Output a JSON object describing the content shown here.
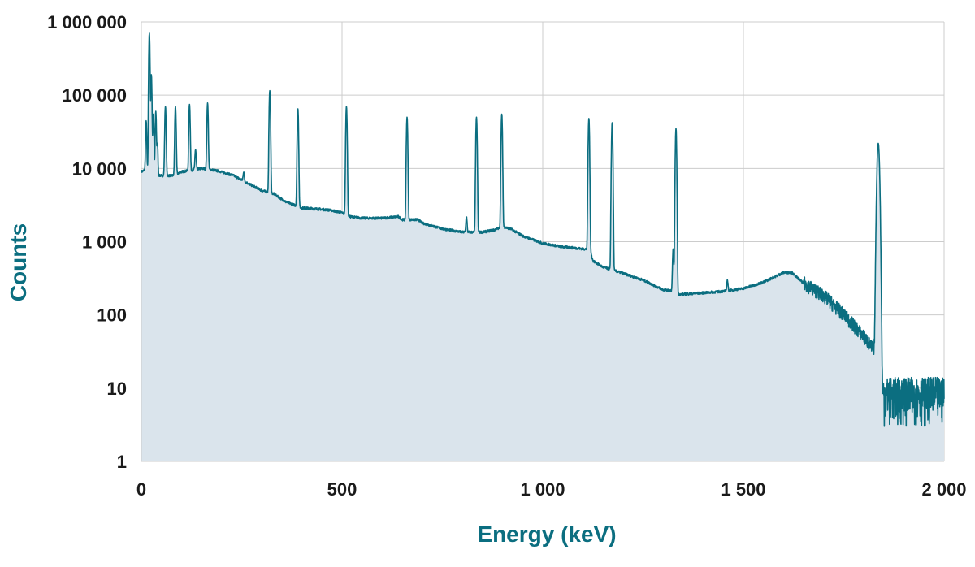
{
  "chart_data": {
    "type": "area",
    "title": "",
    "xlabel": "Energy (keV)",
    "ylabel": "Counts",
    "xlim": [
      0,
      2000
    ],
    "ylim": [
      1,
      1000000
    ],
    "y_scale": "log",
    "grid": true,
    "x_ticks": [
      {
        "value": 0,
        "label": "0"
      },
      {
        "value": 500,
        "label": "500"
      },
      {
        "value": 1000,
        "label": "1 000"
      },
      {
        "value": 1500,
        "label": "1 500"
      },
      {
        "value": 2000,
        "label": "2 000"
      }
    ],
    "y_ticks": [
      {
        "value": 1,
        "label": "1"
      },
      {
        "value": 10,
        "label": "10"
      },
      {
        "value": 100,
        "label": "100"
      },
      {
        "value": 1000,
        "label": "1 000"
      },
      {
        "value": 10000,
        "label": "10 000"
      },
      {
        "value": 100000,
        "label": "100 000"
      },
      {
        "value": 1000000,
        "label": "1 000 000"
      }
    ],
    "colors": {
      "line": "#0b6e80",
      "fill": "#dae4ec",
      "grid": "#cccccc",
      "axis_title": "#0b6e80",
      "tick_label": "#1a1a1a"
    },
    "series": [
      {
        "name": "Counts",
        "x": [
          0,
          8,
          12,
          18,
          25,
          35,
          45,
          60,
          80,
          100,
          150,
          180,
          200,
          230,
          260,
          300,
          330,
          360,
          400,
          440,
          470,
          500,
          510,
          520,
          550,
          600,
          640,
          650,
          690,
          700,
          750,
          800,
          850,
          880,
          900,
          920,
          950,
          1000,
          1050,
          1100,
          1118,
          1125,
          1150,
          1200,
          1250,
          1300,
          1330,
          1340,
          1400,
          1450,
          1500,
          1550,
          1600,
          1620,
          1650,
          1700,
          1750,
          1800,
          1830,
          1838,
          1842,
          1850,
          1900,
          1950,
          2000
        ],
        "values": [
          9000,
          9500,
          10000,
          9500,
          9000,
          8500,
          8000,
          8000,
          8000,
          9000,
          10000,
          9500,
          9000,
          8000,
          6500,
          5000,
          4500,
          3500,
          2900,
          2800,
          2700,
          2500,
          2300,
          2200,
          2100,
          2100,
          2200,
          2000,
          2000,
          1800,
          1500,
          1350,
          1350,
          1450,
          1600,
          1500,
          1200,
          950,
          850,
          800,
          780,
          550,
          450,
          370,
          300,
          220,
          210,
          190,
          200,
          210,
          230,
          280,
          380,
          380,
          270,
          180,
          100,
          50,
          30,
          8,
          8,
          8,
          8,
          8,
          8
        ]
      }
    ],
    "peaks": [
      {
        "energy": 12,
        "counts": 45000
      },
      {
        "energy": 20,
        "counts": 700000
      },
      {
        "energy": 25,
        "counts": 190000
      },
      {
        "energy": 30,
        "counts": 55000
      },
      {
        "energy": 36,
        "counts": 60000
      },
      {
        "energy": 40,
        "counts": 22000
      },
      {
        "energy": 60,
        "counts": 70000
      },
      {
        "energy": 85,
        "counts": 70000
      },
      {
        "energy": 120,
        "counts": 75000
      },
      {
        "energy": 135,
        "counts": 18000
      },
      {
        "energy": 165,
        "counts": 78000
      },
      {
        "energy": 255,
        "counts": 9000
      },
      {
        "energy": 320,
        "counts": 115000
      },
      {
        "energy": 390,
        "counts": 65000
      },
      {
        "energy": 511,
        "counts": 70000
      },
      {
        "energy": 662,
        "counts": 50000
      },
      {
        "energy": 810,
        "counts": 2200
      },
      {
        "energy": 835,
        "counts": 50000
      },
      {
        "energy": 898,
        "counts": 55000
      },
      {
        "energy": 1115,
        "counts": 48000
      },
      {
        "energy": 1173,
        "counts": 42000
      },
      {
        "energy": 1325,
        "counts": 800
      },
      {
        "energy": 1332,
        "counts": 35000
      },
      {
        "energy": 1460,
        "counts": 300
      },
      {
        "energy": 1836,
        "counts": 22000
      }
    ]
  }
}
